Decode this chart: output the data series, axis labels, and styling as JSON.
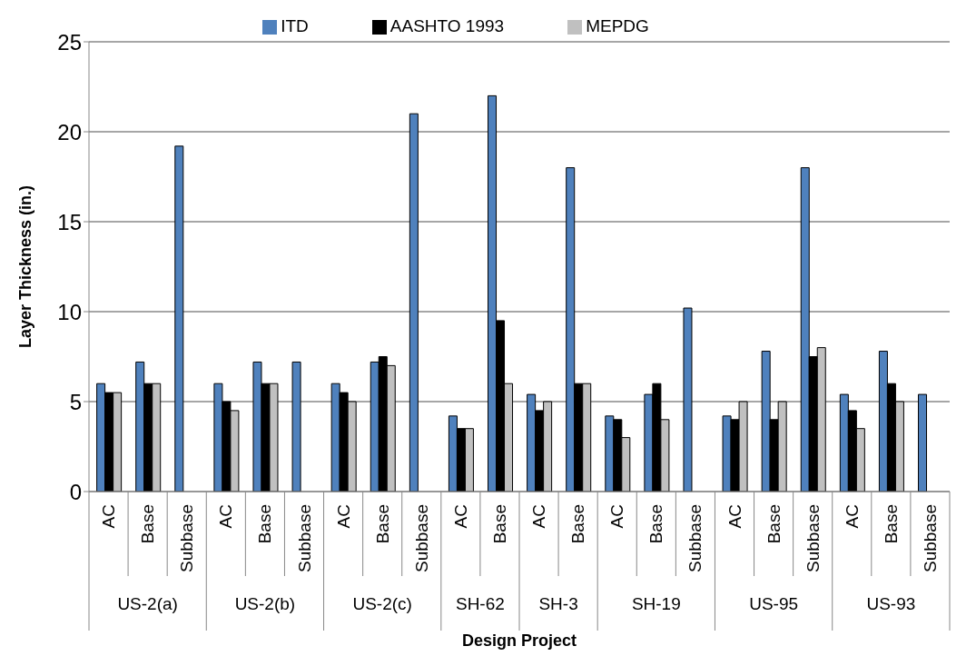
{
  "chart_data": {
    "type": "bar",
    "xlabel": "Design Project",
    "ylabel": "Layer Thickness (in.)",
    "categories": [
      "AC",
      "Base",
      "Subbase",
      "AC",
      "Base",
      "Subbase",
      "AC",
      "Base",
      "Subbase",
      "AC",
      "Base",
      "AC",
      "Base",
      "AC",
      "Base",
      "Subbase",
      "AC",
      "Base",
      "Subbase",
      "AC",
      "Base",
      "Subbase"
    ],
    "annotations": [
      "US-2(a)",
      "US-2(b)",
      "US-2(c)",
      "SH-62",
      "SH-3",
      "SH-19",
      "US-95",
      "US-93"
    ],
    "series": [
      {
        "name": "ITD",
        "color": "#4f81bd",
        "values": [
          6,
          7.2,
          19.2,
          6,
          7.2,
          7.2,
          6,
          7.2,
          21,
          4.2,
          22,
          5.4,
          18,
          4.2,
          5.4,
          10.2,
          4.2,
          7.8,
          18,
          5.4,
          7.8,
          5.4
        ]
      },
      {
        "name": "AASHTO 1993",
        "color": "#000000",
        "values": [
          5.5,
          6,
          null,
          5,
          6,
          null,
          5.5,
          7.5,
          null,
          3.5,
          9.5,
          4.5,
          6,
          4,
          6,
          null,
          4,
          4,
          7.5,
          4.5,
          6,
          null
        ]
      },
      {
        "name": "MEPDG",
        "color": "#c0c0c0",
        "values": [
          5.5,
          6,
          null,
          4.5,
          6,
          null,
          5,
          7,
          null,
          3.5,
          6,
          5,
          6,
          3,
          4,
          null,
          5,
          5,
          8,
          3.5,
          5,
          null
        ]
      }
    ],
    "ylim": [
      0,
      25
    ],
    "yticks": [
      0,
      5,
      10,
      15,
      20,
      25
    ],
    "grid": "y",
    "legend": "top"
  }
}
